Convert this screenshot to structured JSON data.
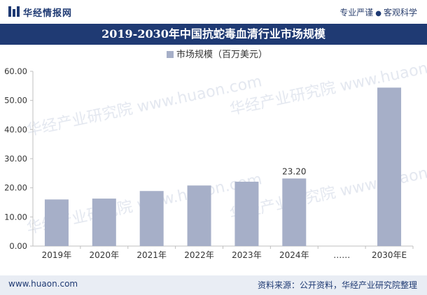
{
  "header": {
    "brand": "华经情报网",
    "slogan_left": "专业严谨",
    "slogan_right": "客观科学"
  },
  "title": "2019-2030年中国抗蛇毒血清行业市场规模",
  "chart_data": {
    "type": "bar",
    "title": "2019-2030年中国抗蛇毒血清行业市场规模",
    "legend": "市场规模（百万美元）",
    "categories": [
      "2019年",
      "2020年",
      "2021年",
      "2022年",
      "2023年",
      "2024年",
      "……",
      "2030年E"
    ],
    "values": [
      16.0,
      16.3,
      18.9,
      20.8,
      22.1,
      23.2,
      null,
      54.4
    ],
    "labels": [
      "",
      "",
      "",
      "",
      "",
      "23.20",
      "",
      ""
    ],
    "ylim": [
      0,
      60
    ],
    "yticks": [
      "0.00",
      "10.00",
      "20.00",
      "30.00",
      "40.00",
      "50.00",
      "60.00"
    ],
    "ytick_values": [
      0,
      10,
      20,
      30,
      40,
      50,
      60
    ],
    "bar_color": "#a6afc8"
  },
  "footer": {
    "site": "www.huaon.com",
    "source": "资料来源：公开资料，华经产业研究院整理"
  },
  "watermark": "华经产业研究院 www.huaon.com",
  "colors": {
    "brand": "#1f3a73",
    "footer_bg": "#e9edf4"
  }
}
